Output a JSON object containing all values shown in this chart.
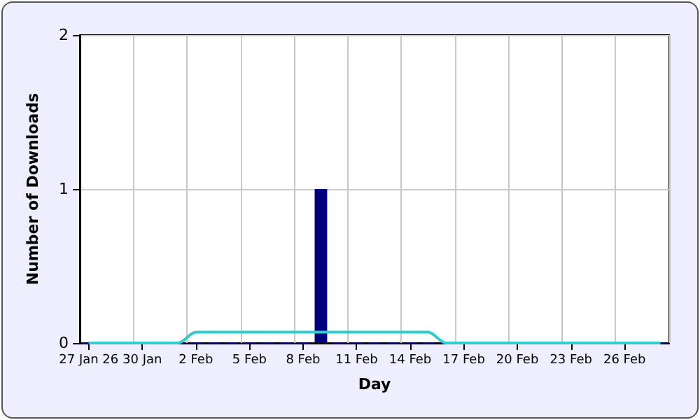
{
  "chart_data": {
    "type": "bar",
    "xlabel": "Day",
    "ylabel": "Number of Downloads",
    "categories": [
      "27 Jan 26",
      null,
      null,
      "30 Jan",
      null,
      null,
      "2 Feb",
      null,
      null,
      "5 Feb",
      null,
      null,
      "8 Feb",
      null,
      null,
      "11 Feb",
      null,
      null,
      "14 Feb",
      null,
      null,
      "17 Feb",
      null,
      null,
      "20 Feb",
      null,
      null,
      "23 Feb",
      null,
      null,
      "26 Feb",
      null,
      null
    ],
    "series": [
      {
        "color": "#000080",
        "values": [
          0,
          0,
          0,
          0,
          0,
          0,
          0,
          0,
          0,
          0,
          0,
          0,
          0,
          1,
          0,
          0,
          0,
          0,
          0,
          0,
          0,
          0,
          0,
          0,
          0,
          0,
          0,
          0,
          0,
          0,
          0,
          0,
          0
        ]
      },
      {
        "type": "line",
        "color": "#33cccc",
        "values": [
          0,
          0,
          0,
          0,
          0,
          0,
          0.07,
          0.07,
          0.07,
          0.07,
          0.07,
          0.07,
          0.07,
          0.07,
          0.07,
          0.07,
          0.07,
          0.07,
          0.07,
          0.07,
          0,
          0,
          0,
          0,
          0,
          0,
          0,
          0,
          0,
          0,
          0,
          0,
          0
        ]
      }
    ],
    "ylim": [
      0,
      2
    ],
    "yticks": [
      0,
      1,
      2
    ],
    "grid": true,
    "marker": "none",
    "line_style": "solid"
  }
}
